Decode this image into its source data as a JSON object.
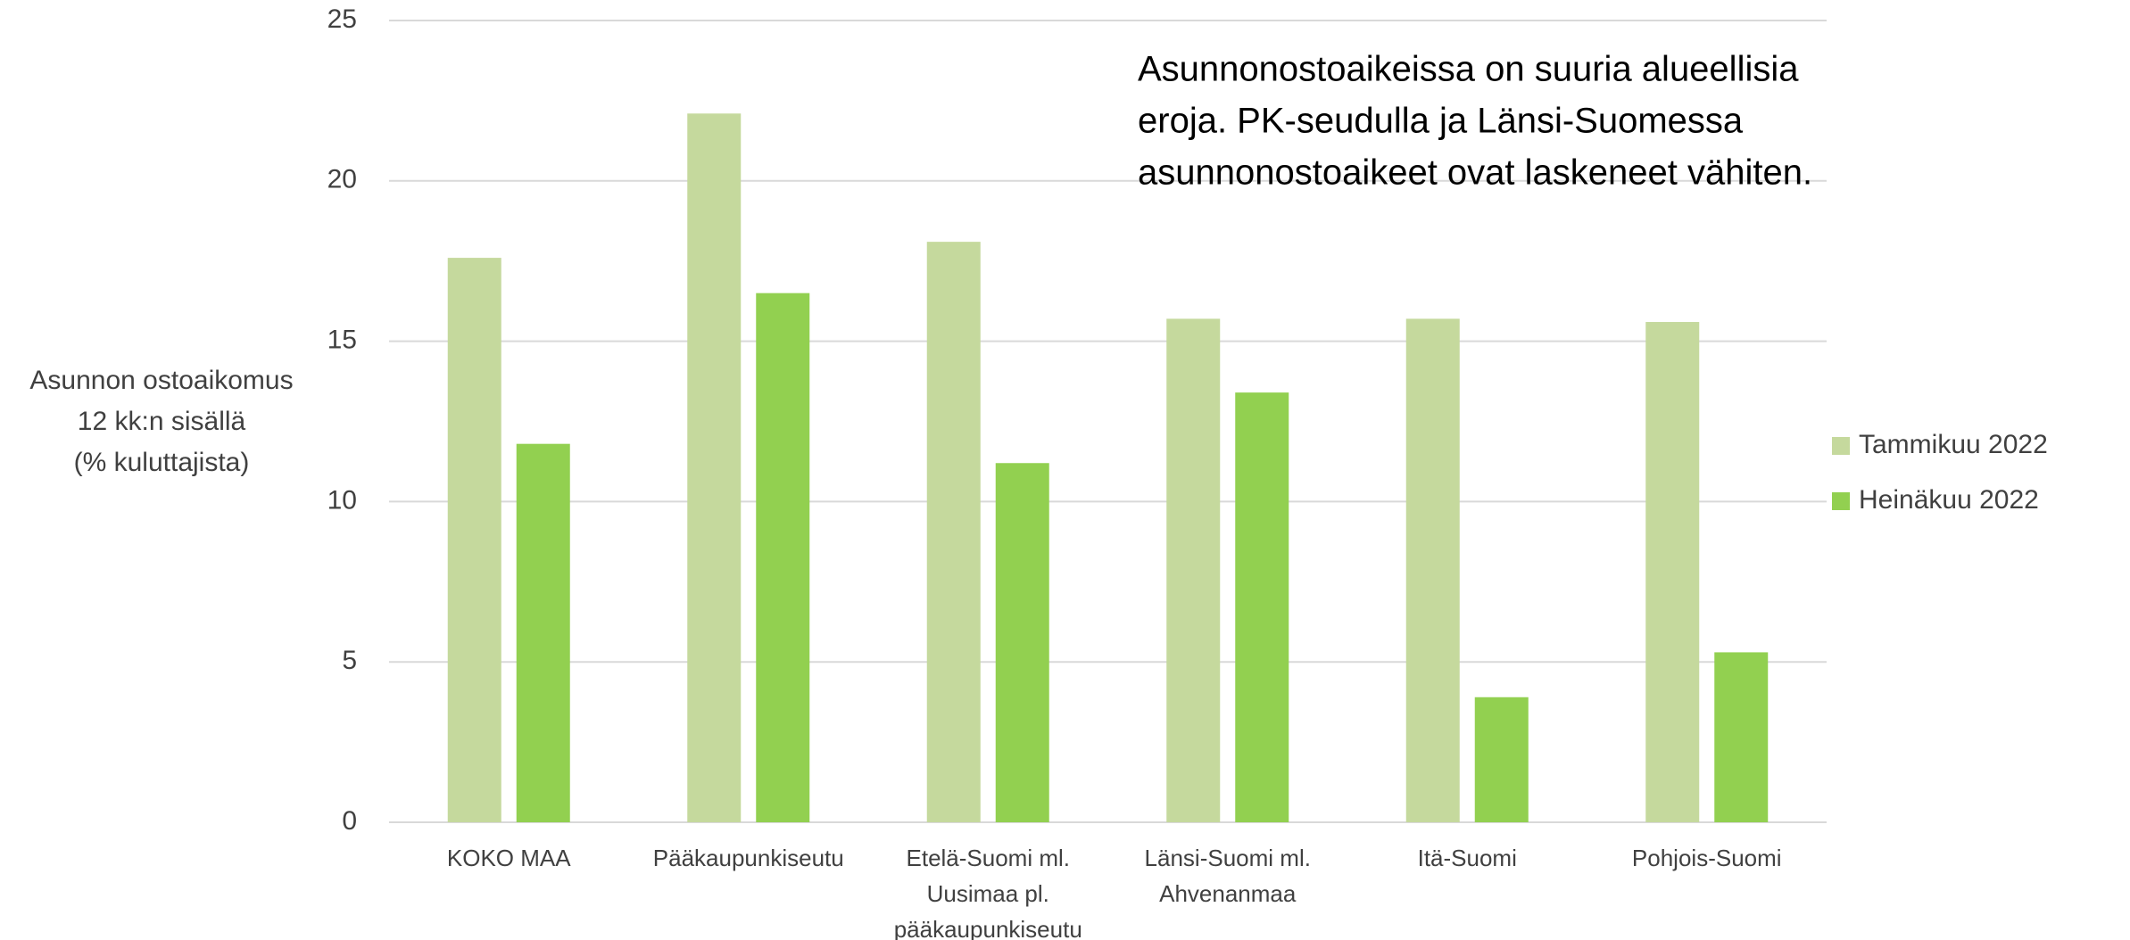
{
  "chart_data": {
    "type": "bar",
    "annotation": [
      "Asunnonostoaikeissa on suuria alueellisia",
      "eroja. PK-seudulla ja Länsi-Suomessa",
      "asunnonostoaikeet ovat laskeneet vähiten."
    ],
    "ylabel": [
      "Asunnon ostoaikomus",
      "12 kk:n sisällä",
      "(% kuluttajista)"
    ],
    "categories": [
      [
        "KOKO MAA"
      ],
      [
        "Pääkaupunkiseutu"
      ],
      [
        "Etelä-Suomi ml.",
        "Uusimaa pl.",
        "pääkaupunkiseutu"
      ],
      [
        "Länsi-Suomi ml.",
        "Ahvenanmaa"
      ],
      [
        "Itä-Suomi"
      ],
      [
        "Pohjois-Suomi"
      ]
    ],
    "series": [
      {
        "name": "Tammikuu 2022",
        "color": "#c5d99d",
        "values": [
          17.6,
          22.1,
          18.1,
          15.7,
          15.7,
          15.6
        ]
      },
      {
        "name": "Heinäkuu 2022",
        "color": "#92d050",
        "values": [
          11.8,
          16.5,
          11.2,
          13.4,
          3.9,
          5.3
        ]
      }
    ],
    "ylim": [
      0,
      25
    ],
    "yticks": [
      0,
      5,
      10,
      15,
      20,
      25
    ],
    "grid": true,
    "legend": "right"
  }
}
